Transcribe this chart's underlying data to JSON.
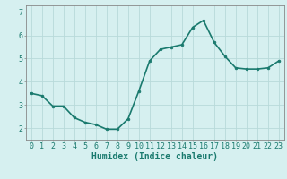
{
  "x": [
    0,
    1,
    2,
    3,
    4,
    5,
    6,
    7,
    8,
    9,
    10,
    11,
    12,
    13,
    14,
    15,
    16,
    17,
    18,
    19,
    20,
    21,
    22,
    23
  ],
  "y": [
    3.5,
    3.4,
    2.95,
    2.95,
    2.45,
    2.25,
    2.15,
    1.95,
    1.95,
    2.4,
    3.6,
    4.9,
    5.4,
    5.5,
    5.6,
    6.35,
    6.65,
    5.7,
    5.1,
    4.6,
    4.55,
    4.55,
    4.6,
    4.9
  ],
  "line_color": "#1a7a6e",
  "marker": "o",
  "marker_size": 2,
  "bg_color": "#d6f0f0",
  "grid_color": "#b8dada",
  "axis_color": "#888888",
  "xlabel": "Humidex (Indice chaleur)",
  "xlabel_fontsize": 7,
  "xlabel_color": "#1a7a6e",
  "xlabel_weight": "bold",
  "ylim": [
    1.5,
    7.3
  ],
  "xlim": [
    -0.5,
    23.5
  ],
  "yticks": [
    2,
    3,
    4,
    5,
    6,
    7
  ],
  "xticks": [
    0,
    1,
    2,
    3,
    4,
    5,
    6,
    7,
    8,
    9,
    10,
    11,
    12,
    13,
    14,
    15,
    16,
    17,
    18,
    19,
    20,
    21,
    22,
    23
  ],
  "tick_fontsize": 6,
  "tick_color": "#1a7a6e",
  "linewidth": 1.2
}
